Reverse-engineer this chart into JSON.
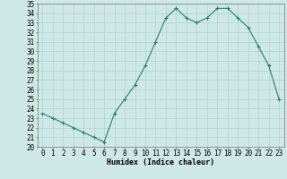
{
  "title": "",
  "xlabel": "Humidex (Indice chaleur)",
  "ylabel": "",
  "x": [
    0,
    1,
    2,
    3,
    4,
    5,
    6,
    7,
    8,
    9,
    10,
    11,
    12,
    13,
    14,
    15,
    16,
    17,
    18,
    19,
    20,
    21,
    22,
    23
  ],
  "y": [
    23.5,
    23.0,
    22.5,
    22.0,
    21.5,
    21.0,
    20.5,
    23.5,
    25.0,
    26.5,
    28.5,
    31.0,
    33.5,
    34.5,
    33.5,
    33.0,
    33.5,
    34.5,
    34.5,
    33.5,
    32.5,
    30.5,
    28.5,
    25.0
  ],
  "ylim": [
    20,
    35
  ],
  "xlim": [
    -0.5,
    23.5
  ],
  "yticks": [
    20,
    21,
    22,
    23,
    24,
    25,
    26,
    27,
    28,
    29,
    30,
    31,
    32,
    33,
    34,
    35
  ],
  "xticks": [
    0,
    1,
    2,
    3,
    4,
    5,
    6,
    7,
    8,
    9,
    10,
    11,
    12,
    13,
    14,
    15,
    16,
    17,
    18,
    19,
    20,
    21,
    22,
    23
  ],
  "line_color": "#2e7d6e",
  "marker": "+",
  "bg_color": "#cde8e5",
  "grid_color": "#afd4d0",
  "axis_color": "#888888",
  "label_fontsize": 6.0,
  "tick_fontsize": 5.5
}
